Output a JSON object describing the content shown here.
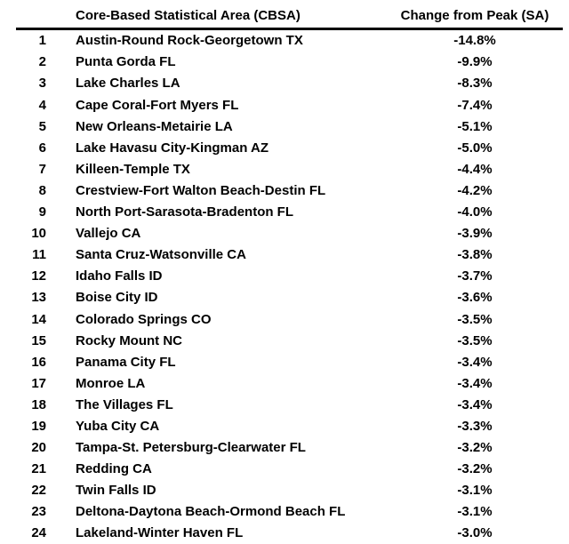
{
  "chart_data": {
    "type": "table",
    "title": "",
    "columns": {
      "rank": "",
      "cbsa": "Core-Based Statistical Area (CBSA)",
      "change": "Change from Peak (SA)"
    },
    "rows": [
      {
        "rank": "1",
        "cbsa": "Austin-Round Rock-Georgetown TX",
        "change": "-14.8%"
      },
      {
        "rank": "2",
        "cbsa": "Punta Gorda FL",
        "change": "-9.9%"
      },
      {
        "rank": "3",
        "cbsa": "Lake Charles LA",
        "change": "-8.3%"
      },
      {
        "rank": "4",
        "cbsa": "Cape Coral-Fort Myers FL",
        "change": "-7.4%"
      },
      {
        "rank": "5",
        "cbsa": "New Orleans-Metairie LA",
        "change": "-5.1%"
      },
      {
        "rank": "6",
        "cbsa": "Lake Havasu City-Kingman AZ",
        "change": "-5.0%"
      },
      {
        "rank": "7",
        "cbsa": "Killeen-Temple TX",
        "change": "-4.4%"
      },
      {
        "rank": "8",
        "cbsa": "Crestview-Fort Walton Beach-Destin FL",
        "change": "-4.2%"
      },
      {
        "rank": "9",
        "cbsa": "North Port-Sarasota-Bradenton FL",
        "change": "-4.0%"
      },
      {
        "rank": "10",
        "cbsa": "Vallejo CA",
        "change": "-3.9%"
      },
      {
        "rank": "11",
        "cbsa": "Santa Cruz-Watsonville CA",
        "change": "-3.8%"
      },
      {
        "rank": "12",
        "cbsa": "Idaho Falls ID",
        "change": "-3.7%"
      },
      {
        "rank": "13",
        "cbsa": "Boise City ID",
        "change": "-3.6%"
      },
      {
        "rank": "14",
        "cbsa": "Colorado Springs CO",
        "change": "-3.5%"
      },
      {
        "rank": "15",
        "cbsa": "Rocky Mount NC",
        "change": "-3.5%"
      },
      {
        "rank": "16",
        "cbsa": "Panama City FL",
        "change": "-3.4%"
      },
      {
        "rank": "17",
        "cbsa": "Monroe LA",
        "change": "-3.4%"
      },
      {
        "rank": "18",
        "cbsa": "The Villages FL",
        "change": "-3.4%"
      },
      {
        "rank": "19",
        "cbsa": "Yuba City CA",
        "change": "-3.3%"
      },
      {
        "rank": "20",
        "cbsa": "Tampa-St. Petersburg-Clearwater FL",
        "change": "-3.2%"
      },
      {
        "rank": "21",
        "cbsa": "Redding CA",
        "change": "-3.2%"
      },
      {
        "rank": "22",
        "cbsa": "Twin Falls ID",
        "change": "-3.1%"
      },
      {
        "rank": "23",
        "cbsa": "Deltona-Daytona Beach-Ormond Beach FL",
        "change": "-3.1%"
      },
      {
        "rank": "24",
        "cbsa": "Lakeland-Winter Haven FL",
        "change": "-3.0%"
      }
    ]
  },
  "colors": {
    "text": "#000000",
    "background": "#ffffff",
    "rule": "#000000"
  }
}
